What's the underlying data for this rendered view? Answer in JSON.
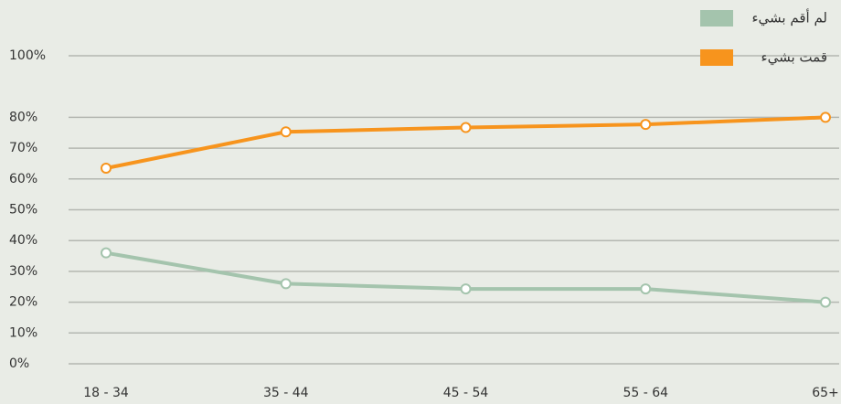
{
  "chart_data": {
    "type": "line",
    "categories": [
      "18 - 34",
      "35 - 44",
      "45 - 54",
      "55 - 64",
      "65+"
    ],
    "series": [
      {
        "name": "لم أقم بشيء",
        "color": "#a4c4ad",
        "values": [
          36,
          26,
          24.3,
          24.3,
          20
        ]
      },
      {
        "name": "قمت بشيء",
        "color": "#f7941d",
        "values": [
          63.5,
          75.3,
          76.7,
          77.7,
          80
        ]
      }
    ],
    "ylim": [
      0,
      100
    ],
    "yticks": [
      {
        "value": 0,
        "label": "0%"
      },
      {
        "value": 10,
        "label": "10%"
      },
      {
        "value": 20,
        "label": "20%"
      },
      {
        "value": 30,
        "label": "30%"
      },
      {
        "value": 40,
        "label": "40%"
      },
      {
        "value": 50,
        "label": "50%"
      },
      {
        "value": 60,
        "label": "60%"
      },
      {
        "value": 70,
        "label": "70%"
      },
      {
        "value": 80,
        "label": "80%"
      },
      {
        "value": 100,
        "label": "100%"
      }
    ],
    "grid": true,
    "legend": "top-right"
  }
}
